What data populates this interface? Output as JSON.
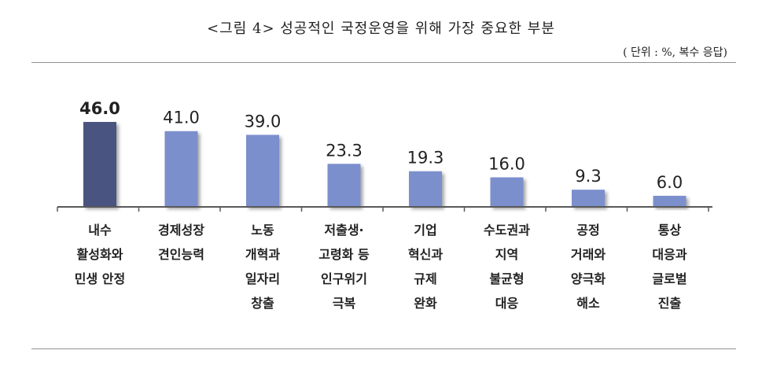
{
  "title": "<그림 4> 성공적인 국정운영을 위해 가장 중요한 부분",
  "unit_note": "( 단위 : %, 복수 응답)",
  "colors": {
    "highlight_bar": "#4a5580",
    "bar": "#7b8fcd",
    "axis": "#595959",
    "text": "#222222"
  },
  "chart_data": {
    "type": "bar",
    "categories": [
      [
        "내수",
        "활성화와",
        "민생 안정"
      ],
      [
        "경제성장",
        "견인능력"
      ],
      [
        "노동",
        "개혁과",
        "일자리",
        "창출"
      ],
      [
        "저출생·",
        "고령화 등",
        "인구위기",
        "극복"
      ],
      [
        "기업",
        "혁신과",
        "규제",
        "완화"
      ],
      [
        "수도권과",
        "지역",
        "불균형",
        "대응"
      ],
      [
        "공정",
        "거래와",
        "양극화",
        "해소"
      ],
      [
        "통상",
        "대응과",
        "글로벌",
        "진출"
      ]
    ],
    "values": [
      46.0,
      41.0,
      39.0,
      23.3,
      19.3,
      16.0,
      9.3,
      6.0
    ],
    "value_labels": [
      "46.0",
      "41.0",
      "39.0",
      "23.3",
      "19.3",
      "16.0",
      "9.3",
      "6.0"
    ],
    "highlight_index": 0
  }
}
